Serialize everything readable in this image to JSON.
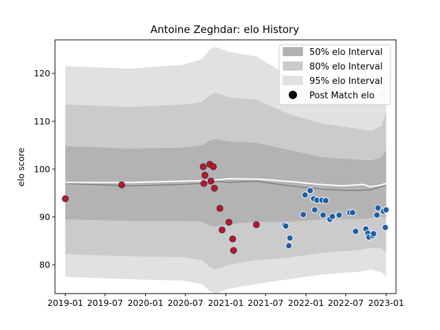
{
  "chart_data": {
    "type": "scatter",
    "title": "Antoine Zeghdar: elo History",
    "xlabel": "",
    "ylabel": "elo score",
    "xlim": [
      "2018-11-15",
      "2023-02-15"
    ],
    "ylim": [
      74,
      127
    ],
    "x_ticks": [
      "2019-01",
      "2019-07",
      "2020-01",
      "2020-07",
      "2021-01",
      "2021-07",
      "2022-01",
      "2022-07",
      "2023-01"
    ],
    "y_ticks": [
      80,
      90,
      100,
      110,
      120
    ],
    "grid": false,
    "legend_position": "top-right",
    "legend": [
      "50% elo Interval",
      "80% elo Interval",
      "95% elo Interval",
      "Post Match elo"
    ],
    "colors": {
      "band_95": "#e1e1e1",
      "band_80": "#cbcbcb",
      "band_50": "#b3b3b3",
      "mean_line": "#7f7f7f",
      "white_line": "#ffffff",
      "win_points": "#1f5fa5",
      "loss_points": "#c0142a"
    },
    "interval_series": [
      {
        "date": "2019-01-01",
        "mean": 97.0,
        "lo50": 89.5,
        "hi50": 104.8,
        "lo80": 82.2,
        "hi80": 113.5,
        "lo95": 77.5,
        "hi95": 121.5
      },
      {
        "date": "2019-10-20",
        "mean": 96.5,
        "lo50": 89.2,
        "hi50": 104.3,
        "lo80": 81.8,
        "hi80": 113.0,
        "lo95": 77.0,
        "hi95": 121.0
      },
      {
        "date": "2020-06-20",
        "mean": 96.8,
        "lo50": 89.2,
        "hi50": 104.5,
        "lo80": 81.6,
        "hi80": 113.5,
        "lo95": 76.7,
        "hi95": 121.8
      },
      {
        "date": "2020-09-15",
        "mean": 97.0,
        "lo50": 89.0,
        "hi50": 105.0,
        "lo80": 81.0,
        "hi80": 114.0,
        "lo95": 76.0,
        "hi95": 123.0
      },
      {
        "date": "2020-10-20",
        "mean": 97.3,
        "lo50": 88.2,
        "hi50": 106.0,
        "lo80": 79.5,
        "hi80": 115.5,
        "lo95": 74.5,
        "hi95": 125.0
      },
      {
        "date": "2020-11-15",
        "mean": 97.5,
        "lo50": 88.0,
        "hi50": 106.3,
        "lo80": 79.0,
        "hi80": 116.0,
        "lo95": 74.0,
        "hi95": 125.5
      },
      {
        "date": "2021-01-15",
        "mean": 97.2,
        "lo50": 88.5,
        "hi50": 105.8,
        "lo80": 80.0,
        "hi80": 115.0,
        "lo95": 75.0,
        "hi95": 124.5
      },
      {
        "date": "2021-05-20",
        "mean": 97.5,
        "lo50": 89.0,
        "hi50": 105.5,
        "lo80": 81.0,
        "hi80": 114.5,
        "lo95": 76.0,
        "hi95": 123.5
      },
      {
        "date": "2021-10-15",
        "mean": 96.5,
        "lo50": 89.0,
        "hi50": 104.0,
        "lo80": 81.5,
        "hi80": 111.5,
        "lo95": 77.0,
        "hi95": 119.5
      },
      {
        "date": "2022-03-15",
        "mean": 95.8,
        "lo50": 89.5,
        "hi50": 102.5,
        "lo80": 82.5,
        "hi80": 109.5,
        "lo95": 78.0,
        "hi95": 117.0
      },
      {
        "date": "2022-08-15",
        "mean": 95.5,
        "lo50": 89.5,
        "hi50": 102.0,
        "lo80": 83.0,
        "hi80": 108.5,
        "lo95": 78.5,
        "hi95": 116.0
      },
      {
        "date": "2022-10-25",
        "mean": 95.7,
        "lo50": 89.8,
        "hi50": 101.8,
        "lo80": 83.5,
        "hi80": 108.0,
        "lo95": 79.0,
        "hi95": 115.0
      },
      {
        "date": "2022-12-10",
        "mean": 96.3,
        "lo50": 90.0,
        "hi50": 102.5,
        "lo80": 83.5,
        "hi80": 109.0,
        "lo95": 78.5,
        "hi95": 116.5
      },
      {
        "date": "2023-01-01",
        "mean": 96.6,
        "lo50": 90.0,
        "hi50": 104.0,
        "lo80": 82.5,
        "hi80": 112.0,
        "lo95": 77.5,
        "hi95": 120.0
      }
    ],
    "white_line": [
      {
        "date": "2019-01-01",
        "value": 97.2
      },
      {
        "date": "2019-10-20",
        "value": 97.2
      },
      {
        "date": "2020-06-20",
        "value": 97.5
      },
      {
        "date": "2020-10-20",
        "value": 97.6
      },
      {
        "date": "2021-01-15",
        "value": 98.0
      },
      {
        "date": "2021-06-01",
        "value": 97.9
      },
      {
        "date": "2021-11-15",
        "value": 97.3
      },
      {
        "date": "2022-03-01",
        "value": 96.8
      },
      {
        "date": "2022-06-15",
        "value": 96.5
      },
      {
        "date": "2022-09-20",
        "value": 96.8
      },
      {
        "date": "2022-10-20",
        "value": 96.3
      },
      {
        "date": "2022-12-01",
        "value": 96.6
      },
      {
        "date": "2023-01-01",
        "value": 97.0
      }
    ],
    "loss_points": [
      {
        "date": "2019-01-01",
        "value": 93.8
      },
      {
        "date": "2019-09-15",
        "value": 96.7
      },
      {
        "date": "2020-09-20",
        "value": 100.5
      },
      {
        "date": "2020-09-23",
        "value": 97.0
      },
      {
        "date": "2020-09-28",
        "value": 98.7
      },
      {
        "date": "2020-10-20",
        "value": 101.0
      },
      {
        "date": "2020-10-25",
        "value": 97.5
      },
      {
        "date": "2020-11-05",
        "value": 100.5
      },
      {
        "date": "2020-11-10",
        "value": 96.0
      },
      {
        "date": "2020-12-05",
        "value": 91.8
      },
      {
        "date": "2020-12-15",
        "value": 87.3
      },
      {
        "date": "2021-01-15",
        "value": 88.9
      },
      {
        "date": "2021-02-01",
        "value": 85.4
      },
      {
        "date": "2021-02-05",
        "value": 83.0
      },
      {
        "date": "2021-05-20",
        "value": 88.4
      }
    ],
    "win_points": [
      {
        "date": "2021-09-25",
        "value": 88.3
      },
      {
        "date": "2021-10-01",
        "value": 88.1
      },
      {
        "date": "2021-10-15",
        "value": 84.0
      },
      {
        "date": "2021-10-20",
        "value": 85.6
      },
      {
        "date": "2021-12-20",
        "value": 90.5
      },
      {
        "date": "2021-12-28",
        "value": 94.6
      },
      {
        "date": "2022-01-20",
        "value": 95.5
      },
      {
        "date": "2022-02-05",
        "value": 93.8
      },
      {
        "date": "2022-02-10",
        "value": 91.5
      },
      {
        "date": "2022-02-20",
        "value": 93.5
      },
      {
        "date": "2022-03-15",
        "value": 93.5
      },
      {
        "date": "2022-03-20",
        "value": 90.4
      },
      {
        "date": "2022-04-01",
        "value": 93.4
      },
      {
        "date": "2022-04-20",
        "value": 89.5
      },
      {
        "date": "2022-05-01",
        "value": 90.1
      },
      {
        "date": "2022-06-01",
        "value": 90.4
      },
      {
        "date": "2022-07-20",
        "value": 90.9
      },
      {
        "date": "2022-08-01",
        "value": 90.9
      },
      {
        "date": "2022-08-15",
        "value": 87.0
      },
      {
        "date": "2022-10-01",
        "value": 87.5
      },
      {
        "date": "2022-10-10",
        "value": 86.6
      },
      {
        "date": "2022-10-15",
        "value": 85.8
      },
      {
        "date": "2022-11-01",
        "value": 86.1
      },
      {
        "date": "2022-11-05",
        "value": 86.5
      },
      {
        "date": "2022-11-20",
        "value": 90.4
      },
      {
        "date": "2022-11-25",
        "value": 91.9
      },
      {
        "date": "2022-12-20",
        "value": 91.2
      },
      {
        "date": "2022-12-28",
        "value": 87.8
      },
      {
        "date": "2023-01-01",
        "value": 91.5
      }
    ]
  }
}
